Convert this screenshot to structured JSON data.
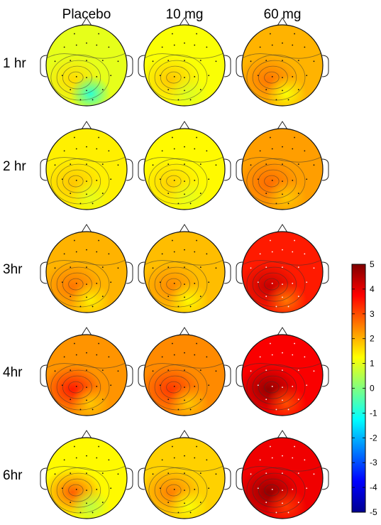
{
  "chart_data": {
    "type": "heatmap",
    "subtype": "eeg-topographic-map-grid",
    "columns": [
      "Placebo",
      "10 mg",
      "60 mg"
    ],
    "rows": [
      "1 hr",
      "2 hr",
      "3hr",
      "4hr",
      "6hr"
    ],
    "colorbar": {
      "min": -5,
      "max": 5,
      "ticks": [
        5,
        4,
        3,
        2,
        1,
        0,
        -1,
        -2,
        -3,
        -4,
        -5
      ],
      "colormap": "jet",
      "colors": [
        "#00008f",
        "#0000ff",
        "#0080ff",
        "#00ffff",
        "#80ff80",
        "#ffff00",
        "#ff8000",
        "#ff0000",
        "#800000"
      ]
    },
    "maps": [
      {
        "row": "1 hr",
        "column": "Placebo",
        "mean": 1.0,
        "min": -0.8,
        "max": 1.6
      },
      {
        "row": "1 hr",
        "column": "10 mg",
        "mean": 1.2,
        "min": 0.9,
        "max": 1.8
      },
      {
        "row": "1 hr",
        "column": "60 mg",
        "mean": 2.0,
        "min": 1.2,
        "max": 2.6
      },
      {
        "row": "2 hr",
        "column": "Placebo",
        "mean": 1.4,
        "min": 1.0,
        "max": 1.8
      },
      {
        "row": "2 hr",
        "column": "10 mg",
        "mean": 1.3,
        "min": 1.0,
        "max": 1.7
      },
      {
        "row": "2 hr",
        "column": "60 mg",
        "mean": 2.2,
        "min": 1.8,
        "max": 2.7
      },
      {
        "row": "3hr",
        "column": "Placebo",
        "mean": 2.0,
        "min": 1.4,
        "max": 2.6
      },
      {
        "row": "3hr",
        "column": "10 mg",
        "mean": 1.9,
        "min": 1.3,
        "max": 2.4
      },
      {
        "row": "3hr",
        "column": "60 mg",
        "mean": 3.5,
        "min": 2.6,
        "max": 4.3
      },
      {
        "row": "4hr",
        "column": "Placebo",
        "mean": 2.3,
        "min": 1.8,
        "max": 3.5
      },
      {
        "row": "4hr",
        "column": "10 mg",
        "mean": 2.4,
        "min": 1.8,
        "max": 3.2
      },
      {
        "row": "4hr",
        "column": "60 mg",
        "mean": 3.8,
        "min": 3.0,
        "max": 4.8
      },
      {
        "row": "6hr",
        "column": "Placebo",
        "mean": 1.3,
        "min": 0.6,
        "max": 2.8
      },
      {
        "row": "6hr",
        "column": "10 mg",
        "mean": 1.7,
        "min": 1.2,
        "max": 2.5
      },
      {
        "row": "6hr",
        "column": "60 mg",
        "mean": 3.9,
        "min": 3.2,
        "max": 4.8
      }
    ]
  }
}
